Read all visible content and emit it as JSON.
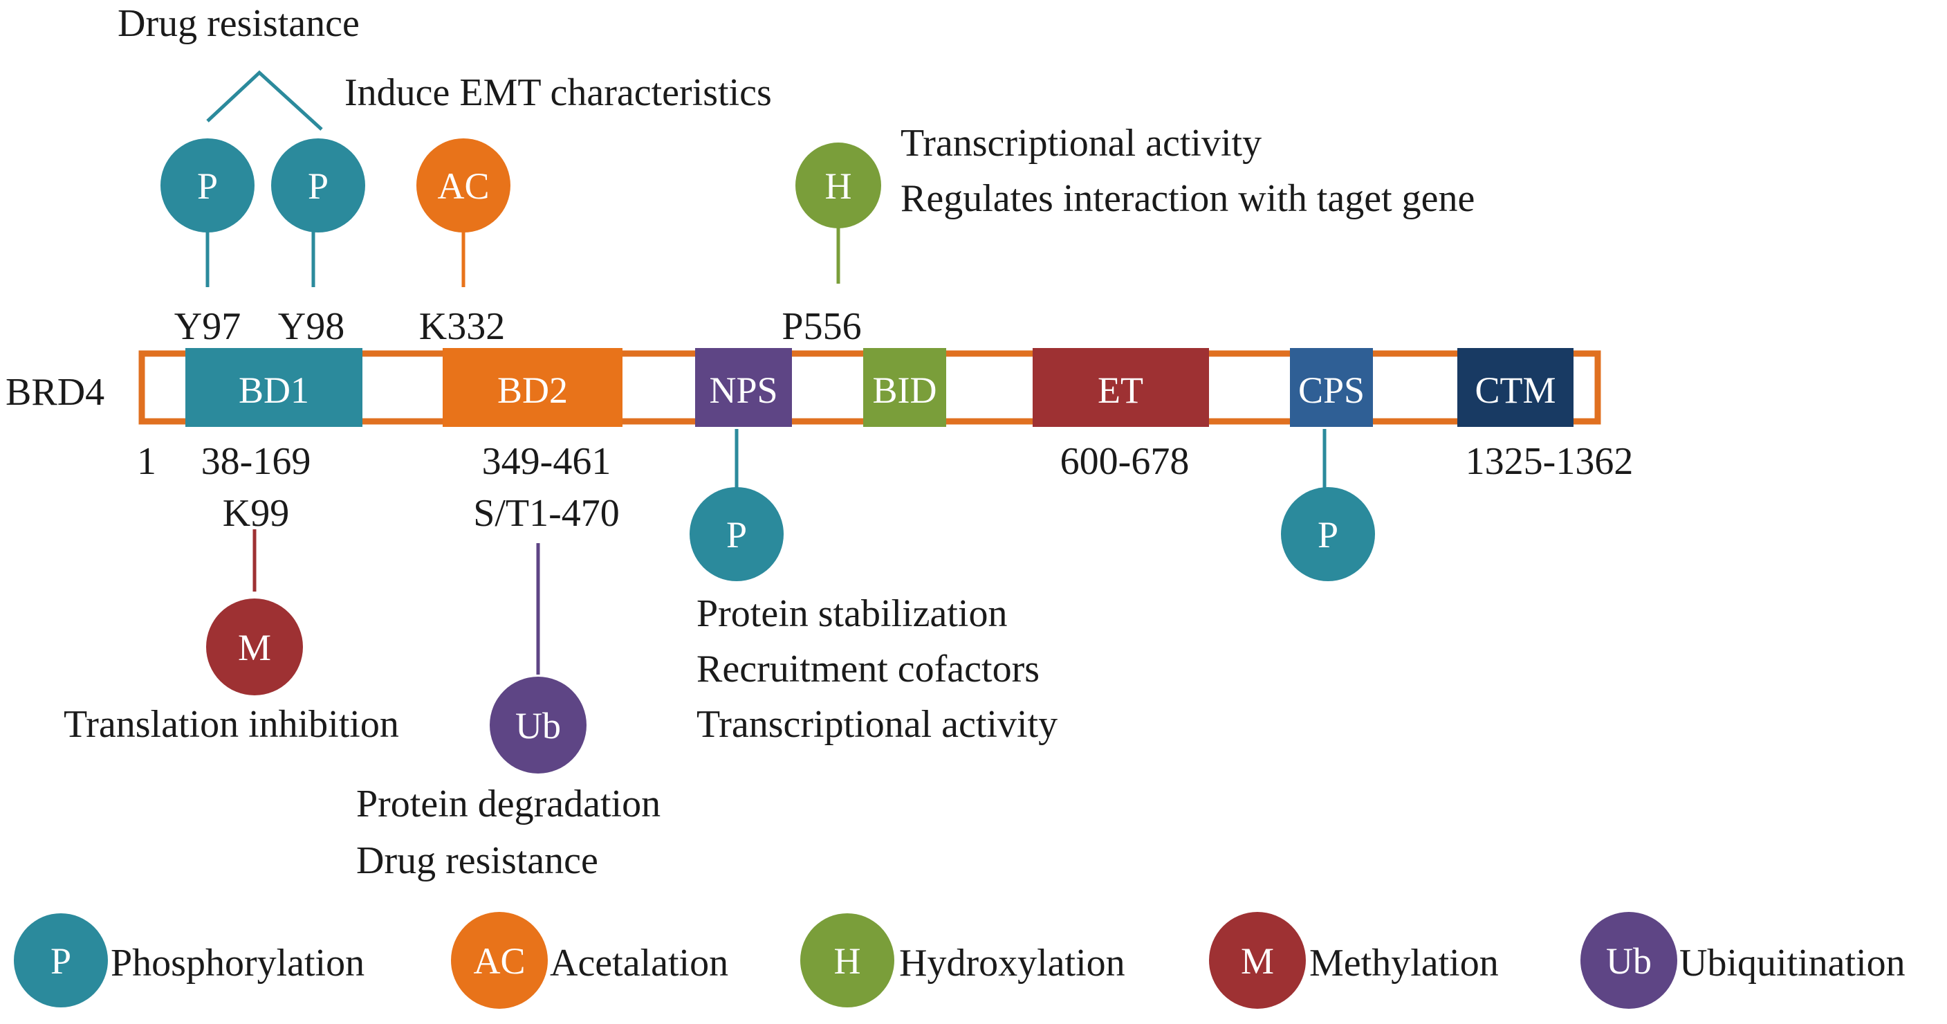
{
  "protein_label": "BRD4",
  "start_position": "1",
  "colors": {
    "phosphorylation": "#2B8A9C",
    "acetylation": "#E8731A",
    "hydroxylation": "#7A9E3A",
    "methylation": "#9E3133",
    "ubiquitination": "#5E4585",
    "bar_border": "#E07020",
    "ctm": "#183A63",
    "cps": "#2F5F95"
  },
  "domains": {
    "bd1": "BD1",
    "bd2": "BD2",
    "nps": "NPS",
    "bid": "BID",
    "et": "ET",
    "cps": "CPS",
    "ctm": "CTM"
  },
  "ranges": {
    "bd1": "38-169",
    "bd2": "349-461",
    "et": "600-678",
    "ctm": "1325-1362"
  },
  "sites": {
    "y97": "Y97",
    "y98": "Y98",
    "k332": "K332",
    "p556": "P556",
    "k99": "K99",
    "st": "S/T1-470"
  },
  "badges": {
    "p": "P",
    "ac": "AC",
    "h": "H",
    "m": "M",
    "ub": "Ub"
  },
  "annotations": {
    "drug_resistance_top": "Drug resistance",
    "induce_emt": "Induce  EMT characteristics",
    "transcriptional_activity_top": "Transcriptional activity",
    "regulates_interaction": "Regulates interaction with taget gene",
    "translation_inhibition": "Translation inhibition",
    "protein_degradation": "Protein degradation",
    "drug_resistance_bottom": "Drug resistance",
    "protein_stabilization": "Protein stabilization",
    "recruitment_cofactors": "Recruitment cofactors",
    "transcriptional_activity_bottom": "Transcriptional activity"
  },
  "legend": [
    {
      "badge": "P",
      "label": "Phosphorylation"
    },
    {
      "badge": "AC",
      "label": "Acetalation"
    },
    {
      "badge": "H",
      "label": "Hydroxylation"
    },
    {
      "badge": "M",
      "label": "Methylation"
    },
    {
      "badge": "Ub",
      "label": "Ubiquitination"
    }
  ]
}
